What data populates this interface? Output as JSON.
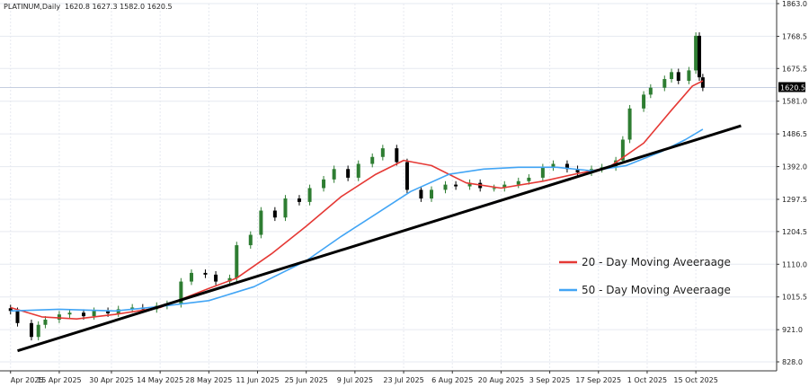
{
  "header": {
    "symbol": "PLATINUM,Daily",
    "ohlc": "1620.8 1627.3 1582.0 1620.5"
  },
  "price_badge": "1620.5",
  "legend": [
    {
      "label": "20 - Day Moving Aveeraage",
      "color": "#e53935"
    },
    {
      "label": "50 - Day Moving Aveeraage",
      "color": "#42a5f5"
    }
  ],
  "colors": {
    "bull": "#2e7d32",
    "bear": "#000000",
    "trendline": "#000000",
    "grid": "#e6e9f0",
    "price_line": "#c5cee0"
  },
  "chart_data": {
    "type": "line",
    "title": "",
    "xlabel": "",
    "ylabel": "",
    "ylim": [
      828.0,
      1863.0
    ],
    "grid": true,
    "legend_position": "bottom-right",
    "y_ticks": [
      "1863.0",
      "1768.5",
      "1675.5",
      "1581.0",
      "1486.5",
      "1392.0",
      "1297.5",
      "1204.5",
      "1110.0",
      "1015.5",
      "921.0",
      "828.0"
    ],
    "x_ticks": [
      "Apr 2025",
      "15 Apr 2025",
      "30 Apr 2025",
      "14 May 2025",
      "28 May 2025",
      "11 Jun 2025",
      "25 Jun 2025",
      "9 Jul 2025",
      "23 Jul 2025",
      "6 Aug 2025",
      "20 Aug 2025",
      "3 Sep 2025",
      "17 Sep 2025",
      "1 Oct 2025",
      "15 Oct 2025"
    ],
    "close_series": [
      {
        "date": "2025-04-01",
        "value": 975
      },
      {
        "date": "2025-04-03",
        "value": 940
      },
      {
        "date": "2025-04-07",
        "value": 900
      },
      {
        "date": "2025-04-09",
        "value": 935
      },
      {
        "date": "2025-04-11",
        "value": 950
      },
      {
        "date": "2025-04-15",
        "value": 965
      },
      {
        "date": "2025-04-18",
        "value": 970
      },
      {
        "date": "2025-04-22",
        "value": 960
      },
      {
        "date": "2025-04-25",
        "value": 975
      },
      {
        "date": "2025-04-29",
        "value": 968
      },
      {
        "date": "2025-05-02",
        "value": 980
      },
      {
        "date": "2025-05-06",
        "value": 985
      },
      {
        "date": "2025-05-09",
        "value": 980
      },
      {
        "date": "2025-05-13",
        "value": 990
      },
      {
        "date": "2025-05-16",
        "value": 995
      },
      {
        "date": "2025-05-20",
        "value": 1060
      },
      {
        "date": "2025-05-23",
        "value": 1085
      },
      {
        "date": "2025-05-27",
        "value": 1080
      },
      {
        "date": "2025-05-30",
        "value": 1060
      },
      {
        "date": "2025-06-03",
        "value": 1070
      },
      {
        "date": "2025-06-05",
        "value": 1165
      },
      {
        "date": "2025-06-09",
        "value": 1195
      },
      {
        "date": "2025-06-12",
        "value": 1265
      },
      {
        "date": "2025-06-16",
        "value": 1245
      },
      {
        "date": "2025-06-19",
        "value": 1300
      },
      {
        "date": "2025-06-23",
        "value": 1290
      },
      {
        "date": "2025-06-26",
        "value": 1330
      },
      {
        "date": "2025-06-30",
        "value": 1355
      },
      {
        "date": "2025-07-03",
        "value": 1385
      },
      {
        "date": "2025-07-07",
        "value": 1360
      },
      {
        "date": "2025-07-10",
        "value": 1400
      },
      {
        "date": "2025-07-14",
        "value": 1420
      },
      {
        "date": "2025-07-17",
        "value": 1445
      },
      {
        "date": "2025-07-21",
        "value": 1405
      },
      {
        "date": "2025-07-24",
        "value": 1325
      },
      {
        "date": "2025-07-28",
        "value": 1300
      },
      {
        "date": "2025-07-31",
        "value": 1325
      },
      {
        "date": "2025-08-04",
        "value": 1340
      },
      {
        "date": "2025-08-07",
        "value": 1335
      },
      {
        "date": "2025-08-11",
        "value": 1345
      },
      {
        "date": "2025-08-14",
        "value": 1330
      },
      {
        "date": "2025-08-18",
        "value": 1330
      },
      {
        "date": "2025-08-21",
        "value": 1340
      },
      {
        "date": "2025-08-25",
        "value": 1350
      },
      {
        "date": "2025-08-28",
        "value": 1360
      },
      {
        "date": "2025-09-01",
        "value": 1390
      },
      {
        "date": "2025-09-04",
        "value": 1400
      },
      {
        "date": "2025-09-08",
        "value": 1385
      },
      {
        "date": "2025-09-11",
        "value": 1375
      },
      {
        "date": "2025-09-15",
        "value": 1385
      },
      {
        "date": "2025-09-18",
        "value": 1390
      },
      {
        "date": "2025-09-22",
        "value": 1410
      },
      {
        "date": "2025-09-24",
        "value": 1470
      },
      {
        "date": "2025-09-26",
        "value": 1560
      },
      {
        "date": "2025-09-30",
        "value": 1600
      },
      {
        "date": "2025-10-02",
        "value": 1620
      },
      {
        "date": "2025-10-06",
        "value": 1645
      },
      {
        "date": "2025-10-08",
        "value": 1665
      },
      {
        "date": "2025-10-10",
        "value": 1640
      },
      {
        "date": "2025-10-13",
        "value": 1670
      },
      {
        "date": "2025-10-15",
        "value": 1770
      },
      {
        "date": "2025-10-16",
        "value": 1650
      },
      {
        "date": "2025-10-17",
        "value": 1620
      }
    ],
    "series": [
      {
        "name": "20 - Day Moving Aveeraage",
        "points": [
          {
            "date": "2025-04-01",
            "value": 985
          },
          {
            "date": "2025-04-10",
            "value": 958
          },
          {
            "date": "2025-04-20",
            "value": 952
          },
          {
            "date": "2025-05-01",
            "value": 965
          },
          {
            "date": "2025-05-14",
            "value": 985
          },
          {
            "date": "2025-05-28",
            "value": 1040
          },
          {
            "date": "2025-06-05",
            "value": 1070
          },
          {
            "date": "2025-06-15",
            "value": 1140
          },
          {
            "date": "2025-06-25",
            "value": 1220
          },
          {
            "date": "2025-07-05",
            "value": 1305
          },
          {
            "date": "2025-07-15",
            "value": 1370
          },
          {
            "date": "2025-07-23",
            "value": 1410
          },
          {
            "date": "2025-07-31",
            "value": 1395
          },
          {
            "date": "2025-08-10",
            "value": 1345
          },
          {
            "date": "2025-08-20",
            "value": 1330
          },
          {
            "date": "2025-09-01",
            "value": 1350
          },
          {
            "date": "2025-09-10",
            "value": 1370
          },
          {
            "date": "2025-09-20",
            "value": 1390
          },
          {
            "date": "2025-09-30",
            "value": 1460
          },
          {
            "date": "2025-10-08",
            "value": 1555
          },
          {
            "date": "2025-10-14",
            "value": 1625
          },
          {
            "date": "2025-10-17",
            "value": 1640
          }
        ]
      },
      {
        "name": "50 - Day Moving Aveeraage",
        "points": [
          {
            "date": "2025-04-01",
            "value": 975
          },
          {
            "date": "2025-04-15",
            "value": 980
          },
          {
            "date": "2025-05-01",
            "value": 975
          },
          {
            "date": "2025-05-14",
            "value": 988
          },
          {
            "date": "2025-05-28",
            "value": 1005
          },
          {
            "date": "2025-06-10",
            "value": 1045
          },
          {
            "date": "2025-06-25",
            "value": 1120
          },
          {
            "date": "2025-07-05",
            "value": 1190
          },
          {
            "date": "2025-07-15",
            "value": 1255
          },
          {
            "date": "2025-07-25",
            "value": 1320
          },
          {
            "date": "2025-08-05",
            "value": 1370
          },
          {
            "date": "2025-08-15",
            "value": 1385
          },
          {
            "date": "2025-08-25",
            "value": 1390
          },
          {
            "date": "2025-09-05",
            "value": 1390
          },
          {
            "date": "2025-09-15",
            "value": 1380
          },
          {
            "date": "2025-09-25",
            "value": 1395
          },
          {
            "date": "2025-10-05",
            "value": 1435
          },
          {
            "date": "2025-10-12",
            "value": 1470
          },
          {
            "date": "2025-10-17",
            "value": 1500
          }
        ]
      },
      {
        "name": "",
        "points": [
          {
            "date": "2025-04-03",
            "value": 860
          },
          {
            "date": "2025-10-28",
            "value": 1510
          }
        ]
      }
    ]
  }
}
